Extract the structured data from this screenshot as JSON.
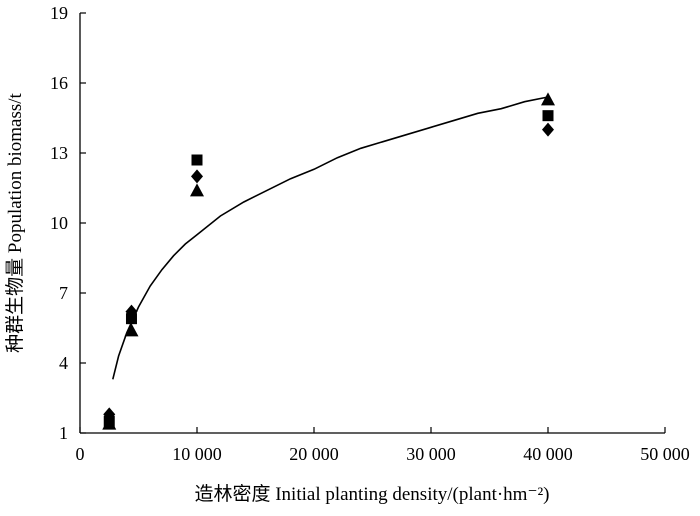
{
  "chart_data": {
    "type": "scatter",
    "xlabel": "造林密度 Initial planting density/(plant·hm⁻²)",
    "ylabel": "种群生物量 Population biomass/t",
    "xlim": [
      0,
      50000
    ],
    "ylim": [
      1,
      19
    ],
    "x_ticks": [
      0,
      10000,
      20000,
      30000,
      40000,
      50000
    ],
    "x_tick_labels": [
      "0",
      "10 000",
      "20 000",
      "30 000",
      "40 000",
      "50 000"
    ],
    "y_ticks": [
      1,
      4,
      7,
      10,
      13,
      16,
      19
    ],
    "y_tick_labels": [
      "1",
      "4",
      "7",
      "10",
      "13",
      "16",
      "19"
    ],
    "grid": false,
    "legend": "none",
    "colors": {
      "marks": "#000000"
    },
    "series": [
      {
        "marker": "square",
        "points": [
          [
            2500,
            1.5
          ],
          [
            4400,
            5.9
          ],
          [
            10000,
            12.7
          ],
          [
            40000,
            14.6
          ]
        ]
      },
      {
        "marker": "diamond",
        "points": [
          [
            2500,
            1.8
          ],
          [
            4400,
            6.2
          ],
          [
            10000,
            12.0
          ],
          [
            40000,
            14.0
          ]
        ]
      },
      {
        "marker": "triangle",
        "points": [
          [
            2500,
            1.4
          ],
          [
            4400,
            5.4
          ],
          [
            10000,
            11.4
          ],
          [
            40000,
            15.3
          ]
        ]
      }
    ],
    "fit_curve": {
      "type": "line",
      "points": [
        [
          2800,
          3.3
        ],
        [
          3300,
          4.3
        ],
        [
          4000,
          5.3
        ],
        [
          5000,
          6.4
        ],
        [
          6000,
          7.3
        ],
        [
          7000,
          8.0
        ],
        [
          8000,
          8.6
        ],
        [
          9000,
          9.1
        ],
        [
          10000,
          9.5
        ],
        [
          12000,
          10.3
        ],
        [
          14000,
          10.9
        ],
        [
          16000,
          11.4
        ],
        [
          18000,
          11.9
        ],
        [
          20000,
          12.3
        ],
        [
          22000,
          12.8
        ],
        [
          24000,
          13.2
        ],
        [
          26000,
          13.5
        ],
        [
          28000,
          13.8
        ],
        [
          30000,
          14.1
        ],
        [
          32000,
          14.4
        ],
        [
          34000,
          14.7
        ],
        [
          36000,
          14.9
        ],
        [
          38000,
          15.2
        ],
        [
          40000,
          15.4
        ]
      ]
    }
  }
}
